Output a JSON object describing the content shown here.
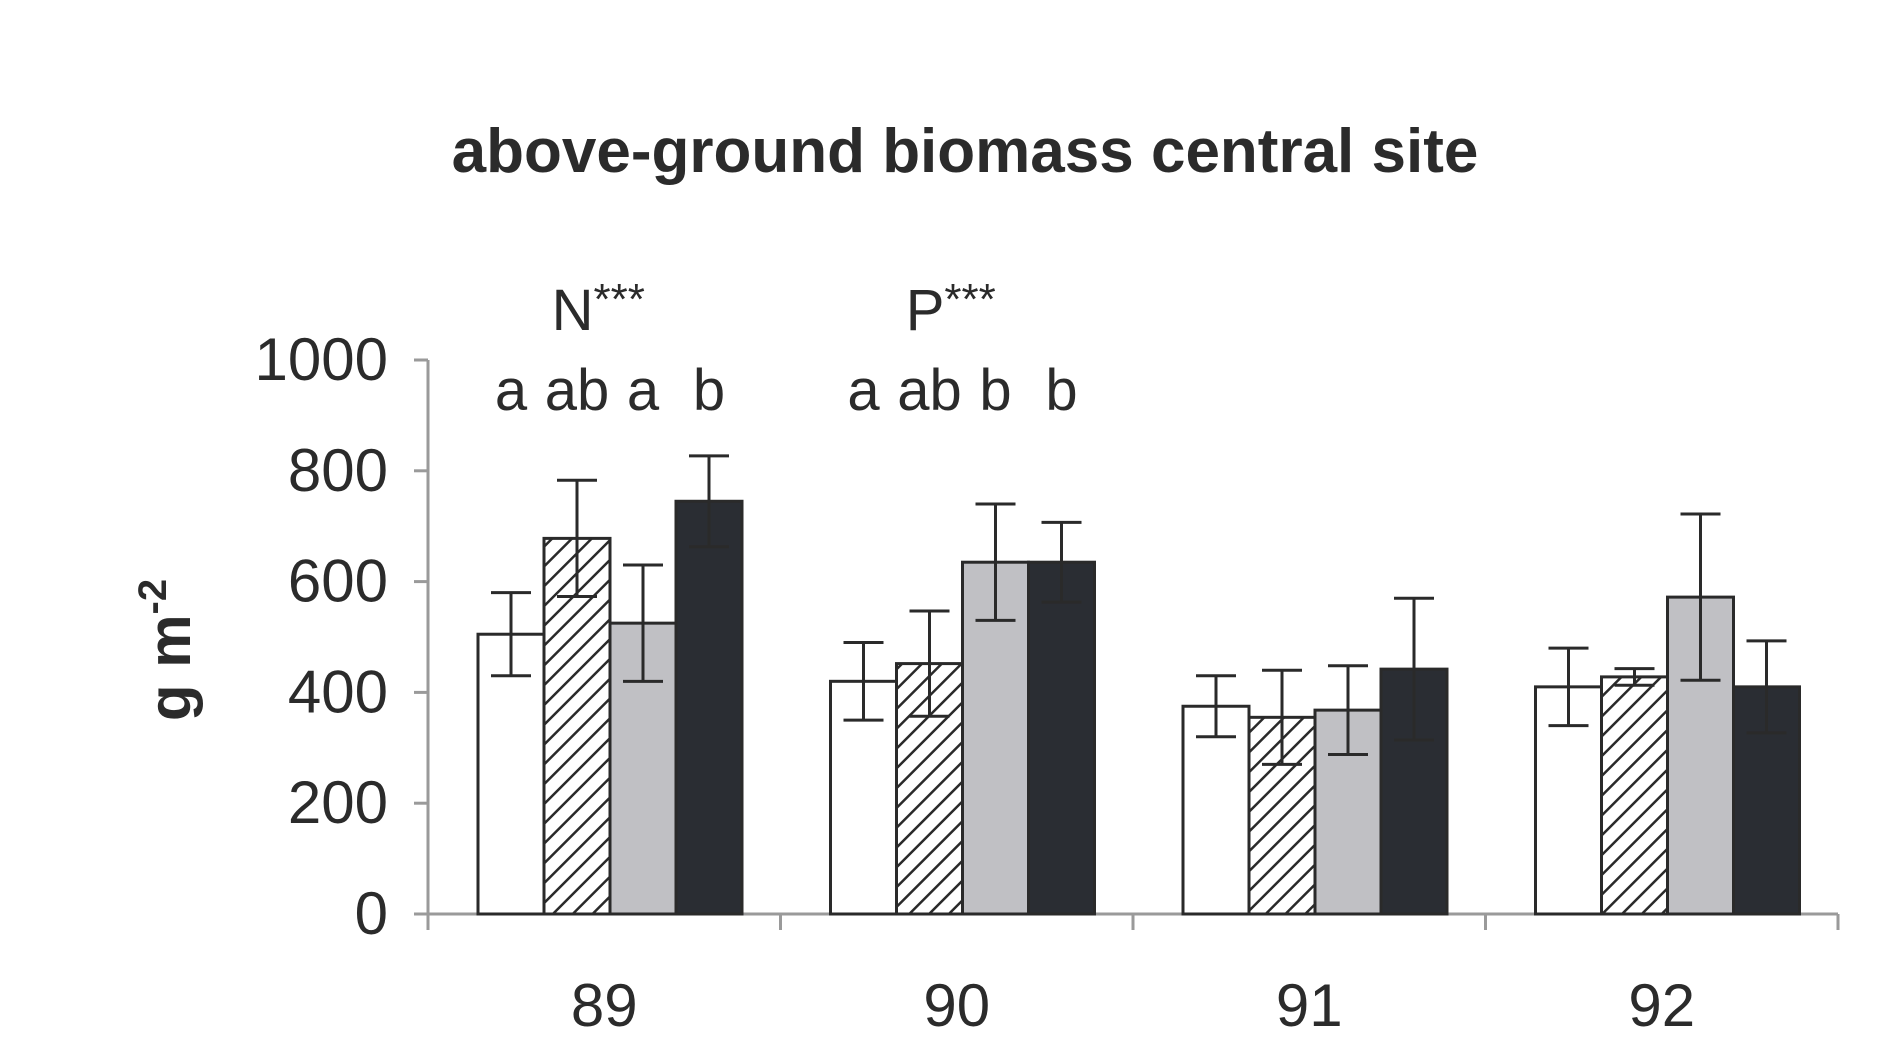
{
  "chart_data": {
    "type": "bar",
    "title": "above-ground biomass central site",
    "ylabel": "g m",
    "ylabel_superscript": "-2",
    "xlabel": "",
    "ylim": [
      0,
      1000
    ],
    "yticks": [
      0,
      200,
      400,
      600,
      800,
      1000
    ],
    "categories": [
      "89",
      "90",
      "91",
      "92"
    ],
    "grid": false,
    "legend": "none",
    "series": [
      {
        "fill": "#ffffff",
        "values": [
          505,
          420,
          375,
          410
        ],
        "errors": [
          75,
          70,
          55,
          70
        ]
      },
      {
        "fill": "hatch",
        "values": [
          678,
          452,
          355,
          428
        ],
        "errors": [
          105,
          95,
          85,
          15
        ]
      },
      {
        "fill": "#c0c0c4",
        "values": [
          525,
          635,
          368,
          572
        ],
        "errors": [
          105,
          105,
          80,
          150
        ]
      },
      {
        "fill": "#2a2d33",
        "values": [
          745,
          635,
          442,
          410
        ],
        "errors": [
          82,
          72,
          128,
          83
        ]
      }
    ],
    "annotations": [
      {
        "category": "89",
        "label": "N",
        "stars": "***",
        "letters": [
          "a",
          "ab",
          "a",
          "b"
        ]
      },
      {
        "category": "90",
        "label": "P",
        "stars": "***",
        "letters": [
          "a",
          "ab",
          "b",
          "b"
        ]
      }
    ],
    "colors": {
      "axis": "#9a9a9a",
      "bar_stroke": "#2a2a2a",
      "error_bar": "#2a2a2a",
      "text": "#2b2b2b"
    }
  }
}
